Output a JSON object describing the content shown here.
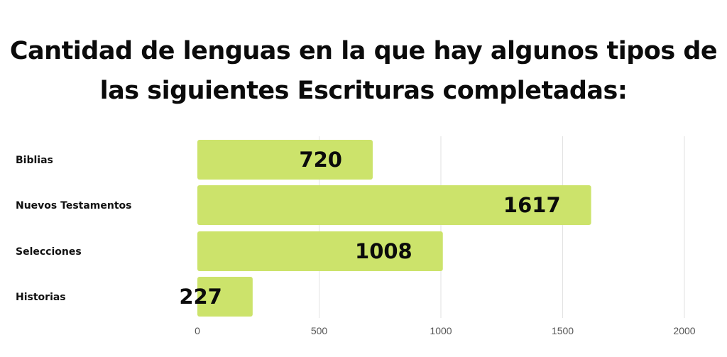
{
  "chart_data": {
    "type": "bar",
    "orientation": "horizontal",
    "title_lines": [
      "Cantidad de lenguas en la que hay algunos tipos de",
      "las siguientes Escrituras completadas:"
    ],
    "categories": [
      "Biblias",
      "Nuevos Testamentos",
      "Selecciones",
      "Historias"
    ],
    "values": [
      720,
      1617,
      1008,
      227
    ],
    "value_labels": [
      "720",
      "1617",
      "1008",
      "227"
    ],
    "xlim": [
      0,
      2000
    ],
    "x_ticks": [
      0,
      500,
      1000,
      1500,
      2000
    ],
    "x_tick_labels": [
      "0",
      "500",
      "1000",
      "1500",
      "2000"
    ],
    "grid": "vertical",
    "bar_color": "#cce36b",
    "legend": "none"
  }
}
